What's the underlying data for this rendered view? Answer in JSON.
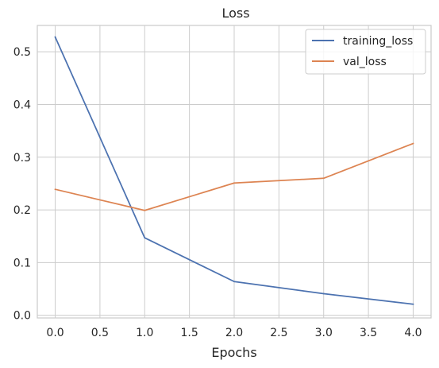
{
  "chart_data": {
    "type": "line",
    "title": "Loss",
    "xlabel": "Epochs",
    "ylabel": "",
    "xlim": [
      -0.2,
      4.2
    ],
    "ylim": [
      -0.005,
      0.55
    ],
    "x_ticks": [
      "0.0",
      "0.5",
      "1.0",
      "1.5",
      "2.0",
      "2.5",
      "3.0",
      "3.5",
      "4.0"
    ],
    "y_ticks": [
      "0.0",
      "0.1",
      "0.2",
      "0.3",
      "0.4",
      "0.5"
    ],
    "grid": true,
    "legend_position": "top-right",
    "x": [
      0,
      1,
      2,
      3,
      4
    ],
    "series": [
      {
        "name": "training_loss",
        "color": "#4c72b0",
        "values": [
          0.528,
          0.147,
          0.064,
          0.041,
          0.021
        ]
      },
      {
        "name": "val_loss",
        "color": "#dd8452",
        "values": [
          0.239,
          0.199,
          0.251,
          0.26,
          0.326
        ]
      }
    ]
  }
}
